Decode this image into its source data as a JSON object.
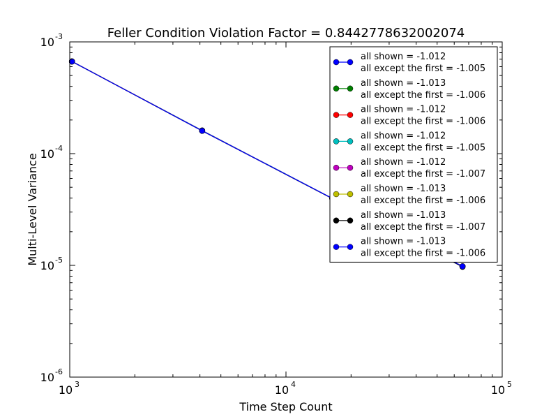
{
  "chart_data": {
    "type": "line",
    "title": "Feller Condition Violation Factor = 0.8442778632002074",
    "xlabel": "Time Step Count",
    "ylabel": "Multi-Level Variance",
    "x_scale": "log",
    "y_scale": "log",
    "xlim": [
      1000,
      100000
    ],
    "ylim": [
      1e-06,
      0.001
    ],
    "x_ticks": [
      {
        "value": 1000,
        "base": "10",
        "exp": "3"
      },
      {
        "value": 10000,
        "base": "10",
        "exp": "4"
      },
      {
        "value": 100000,
        "base": "10",
        "exp": "5"
      }
    ],
    "y_ticks": [
      {
        "value": 1e-06,
        "base": "10",
        "exp": "-6"
      },
      {
        "value": 1e-05,
        "base": "10",
        "exp": "-5"
      },
      {
        "value": 0.0001,
        "base": "10",
        "exp": "-4"
      },
      {
        "value": 0.001,
        "base": "10",
        "exp": "-3"
      }
    ],
    "grid": false,
    "legend_position": "top-right",
    "x": [
      1024,
      4096,
      16384,
      65536
    ],
    "series": [
      {
        "line1": "all shown = -1.012",
        "line2": "all except the first = -1.005",
        "color": "#0000ff",
        "values": [
          0.000668,
          0.000161,
          3.98e-05,
          9.8e-06
        ]
      },
      {
        "line1": "all shown = -1.013",
        "line2": "all except the first = -1.006",
        "color": "#008000",
        "values": [
          0.000669,
          0.00016,
          3.96e-05,
          9.8e-06
        ]
      },
      {
        "line1": "all shown = -1.012",
        "line2": "all except the first = -1.006",
        "color": "#ff0000",
        "values": [
          0.000668,
          0.000161,
          3.97e-05,
          9.8e-06
        ]
      },
      {
        "line1": "all shown = -1.012",
        "line2": "all except the first = -1.005",
        "color": "#00bfbf",
        "values": [
          0.000667,
          0.000161,
          3.98e-05,
          9.8e-06
        ]
      },
      {
        "line1": "all shown = -1.012",
        "line2": "all except the first = -1.007",
        "color": "#bf00bf",
        "values": [
          0.000668,
          0.00016,
          3.97e-05,
          9.8e-06
        ]
      },
      {
        "line1": "all shown = -1.013",
        "line2": "all except the first = -1.006",
        "color": "#bfbf00",
        "values": [
          0.000669,
          0.00016,
          3.96e-05,
          9.8e-06
        ]
      },
      {
        "line1": "all shown = -1.013",
        "line2": "all except the first = -1.007",
        "color": "#000000",
        "values": [
          0.000668,
          0.00016,
          3.96e-05,
          9.7e-06
        ]
      },
      {
        "line1": "all shown = -1.013",
        "line2": "all except the first = -1.006",
        "color": "#0000ff",
        "values": [
          0.000668,
          0.00016,
          3.97e-05,
          9.8e-06
        ]
      }
    ]
  }
}
